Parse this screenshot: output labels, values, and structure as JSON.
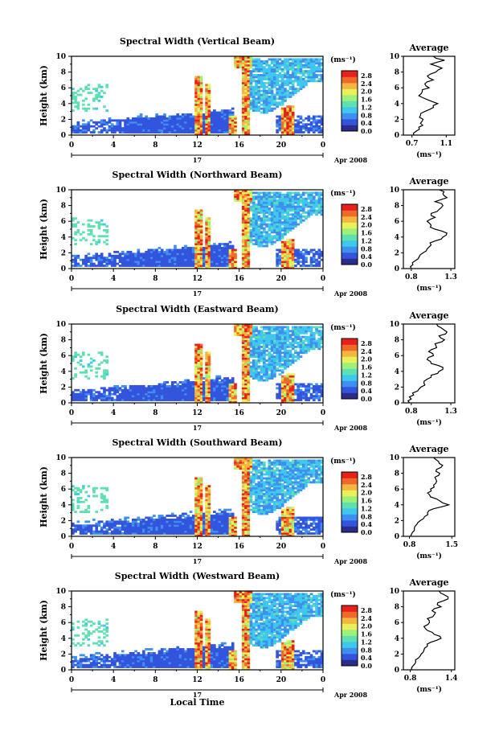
{
  "figure": {
    "x_axis_label": "Local Time",
    "date_label": "Apr 2008",
    "day_label": "17",
    "y_axis_label": "Height (km)",
    "unit_label": "(ms⁻¹)",
    "average_title": "Average",
    "average_unit": "(ms⁻¹)"
  },
  "colorbar": {
    "ticks": [
      "2.8",
      "2.4",
      "2.0",
      "1.6",
      "1.2",
      "0.8",
      "0.4",
      "0.0"
    ],
    "colors": [
      "#2b2b8a",
      "#3355dd",
      "#3f8fef",
      "#3fc8ee",
      "#5fe0b0",
      "#9ff07a",
      "#e8f05a",
      "#f5b640",
      "#ef6a2a",
      "#e8201c"
    ]
  },
  "chart_data": [
    {
      "type": "heatmap",
      "title": "Spectral Width (Vertical Beam)",
      "xlabel": "Local Time",
      "ylabel": "Height (km)",
      "x_ticks": [
        "0",
        "4",
        "8",
        "12",
        "16",
        "20",
        "0"
      ],
      "y_ticks": [
        "0",
        "2",
        "4",
        "6",
        "8",
        "10"
      ],
      "xlim": [
        0,
        24
      ],
      "ylim": [
        0,
        10
      ],
      "colorbar_ticks": [
        "2.8",
        "2.4",
        "2.0",
        "1.6",
        "1.2",
        "0.8",
        "0.4",
        "0.0"
      ],
      "profile": {
        "title": "Average",
        "xlabel": "(ms⁻¹)",
        "x_ticks": [
          "0.7",
          "1.1"
        ],
        "xlim": [
          0.6,
          1.2
        ],
        "y_ticks": [
          "0",
          "2",
          "4",
          "6",
          "8",
          "10"
        ],
        "heights": [
          0,
          0.5,
          1,
          1.5,
          2,
          2.5,
          3,
          3.5,
          4,
          4.5,
          5,
          5.5,
          6,
          6.5,
          7,
          7.5,
          8,
          8.5,
          9,
          9.5,
          10
        ],
        "values": [
          0.72,
          0.75,
          0.78,
          0.8,
          0.83,
          0.8,
          0.85,
          0.95,
          1.0,
          0.88,
          0.78,
          0.82,
          0.9,
          0.85,
          0.95,
          0.88,
          0.98,
          1.05,
          0.92,
          1.08,
          0.95
        ]
      }
    },
    {
      "type": "heatmap",
      "title": "Spectral Width (Northward Beam)",
      "xlabel": "Local Time",
      "ylabel": "Height (km)",
      "x_ticks": [
        "0",
        "4",
        "8",
        "12",
        "16",
        "20",
        "0"
      ],
      "y_ticks": [
        "0",
        "2",
        "4",
        "6",
        "8",
        "10"
      ],
      "xlim": [
        0,
        24
      ],
      "ylim": [
        0,
        10
      ],
      "colorbar_ticks": [
        "2.8",
        "2.4",
        "2.0",
        "1.6",
        "1.2",
        "0.8",
        "0.4",
        "0.0"
      ],
      "profile": {
        "title": "Average",
        "xlabel": "(ms⁻¹)",
        "x_ticks": [
          "0.8",
          "1.3"
        ],
        "xlim": [
          0.7,
          1.35
        ],
        "y_ticks": [
          "0",
          "2",
          "4",
          "6",
          "8",
          "10"
        ],
        "heights": [
          0,
          0.5,
          1,
          1.5,
          2,
          2.5,
          3,
          3.5,
          4,
          4.5,
          5,
          5.5,
          6,
          6.5,
          7,
          7.5,
          8,
          8.5,
          9,
          9.5,
          10
        ],
        "values": [
          0.8,
          0.82,
          0.85,
          0.9,
          0.95,
          1.0,
          1.05,
          1.1,
          1.2,
          1.25,
          1.1,
          1.05,
          1.0,
          1.1,
          1.05,
          1.15,
          1.2,
          1.1,
          1.25,
          1.2,
          1.15
        ]
      }
    },
    {
      "type": "heatmap",
      "title": "Spectral Width (Eastward Beam)",
      "xlabel": "Local Time",
      "ylabel": "Height (km)",
      "x_ticks": [
        "0",
        "4",
        "8",
        "12",
        "16",
        "20",
        "0"
      ],
      "y_ticks": [
        "0",
        "2",
        "4",
        "6",
        "8",
        "10"
      ],
      "xlim": [
        0,
        24
      ],
      "ylim": [
        0,
        10
      ],
      "colorbar_ticks": [
        "2.8",
        "2.4",
        "2.0",
        "1.6",
        "1.2",
        "0.8",
        "0.4",
        "0.0"
      ],
      "profile": {
        "title": "Average",
        "xlabel": "(ms⁻¹)",
        "x_ticks": [
          "0.8",
          "1.3"
        ],
        "xlim": [
          0.7,
          1.35
        ],
        "y_ticks": [
          "0",
          "2",
          "4",
          "6",
          "8",
          "10"
        ],
        "heights": [
          0,
          0.5,
          1,
          1.5,
          2,
          2.5,
          3,
          3.5,
          4,
          4.5,
          5,
          5.5,
          6,
          6.5,
          7,
          7.5,
          8,
          8.5,
          9,
          9.5,
          10
        ],
        "values": [
          0.78,
          0.8,
          0.83,
          0.88,
          0.92,
          0.96,
          1.0,
          1.05,
          1.15,
          1.2,
          1.05,
          1.0,
          1.08,
          1.02,
          1.12,
          1.1,
          1.22,
          1.15,
          1.25,
          1.18,
          1.12
        ]
      }
    },
    {
      "type": "heatmap",
      "title": "Spectral Width (Southward Beam)",
      "xlabel": "Local Time",
      "ylabel": "Height (km)",
      "x_ticks": [
        "0",
        "4",
        "8",
        "12",
        "16",
        "20",
        "0"
      ],
      "y_ticks": [
        "0",
        "2",
        "4",
        "6",
        "8",
        "10"
      ],
      "xlim": [
        0,
        24
      ],
      "ylim": [
        0,
        10
      ],
      "colorbar_ticks": [
        "2.8",
        "2.4",
        "2.0",
        "1.6",
        "1.2",
        "0.8",
        "0.4",
        "0.0"
      ],
      "profile": {
        "title": "Average",
        "xlabel": "(ms⁻¹)",
        "x_ticks": [
          "0.8",
          "1.5"
        ],
        "xlim": [
          0.7,
          1.55
        ],
        "y_ticks": [
          "0",
          "2",
          "4",
          "6",
          "8",
          "10"
        ],
        "heights": [
          0,
          0.5,
          1,
          1.5,
          2,
          2.5,
          3,
          3.5,
          4,
          4.5,
          5,
          5.5,
          6,
          6.5,
          7,
          7.5,
          8,
          8.5,
          9,
          9.5,
          10
        ],
        "values": [
          0.82,
          0.85,
          0.88,
          0.92,
          0.98,
          1.05,
          1.1,
          1.2,
          1.45,
          1.3,
          1.15,
          1.1,
          1.15,
          1.2,
          1.25,
          1.22,
          1.3,
          1.25,
          1.35,
          1.28,
          1.2
        ]
      }
    },
    {
      "type": "heatmap",
      "title": "Spectral Width (Westward Beam)",
      "xlabel": "Local Time",
      "ylabel": "Height (km)",
      "x_ticks": [
        "0",
        "4",
        "8",
        "12",
        "16",
        "20",
        "0"
      ],
      "y_ticks": [
        "0",
        "2",
        "4",
        "6",
        "8",
        "10"
      ],
      "xlim": [
        0,
        24
      ],
      "ylim": [
        0,
        10
      ],
      "colorbar_ticks": [
        "2.8",
        "2.4",
        "2.0",
        "1.6",
        "1.2",
        "0.8",
        "0.4",
        "0.0"
      ],
      "profile": {
        "title": "Average",
        "xlabel": "(ms⁻¹)",
        "x_ticks": [
          "0.8",
          "1.4"
        ],
        "xlim": [
          0.7,
          1.45
        ],
        "y_ticks": [
          "0",
          "2",
          "4",
          "6",
          "8",
          "10"
        ],
        "heights": [
          0,
          0.5,
          1,
          1.5,
          2,
          2.5,
          3,
          3.5,
          4,
          4.5,
          5,
          5.5,
          6,
          6.5,
          7,
          7.5,
          8,
          8.5,
          9,
          9.5,
          10
        ],
        "values": [
          0.82,
          0.84,
          0.88,
          0.92,
          0.96,
          1.0,
          1.05,
          1.1,
          1.25,
          1.15,
          1.05,
          1.0,
          1.08,
          1.05,
          1.15,
          1.12,
          1.25,
          1.2,
          1.35,
          1.3,
          1.22
        ]
      }
    }
  ]
}
